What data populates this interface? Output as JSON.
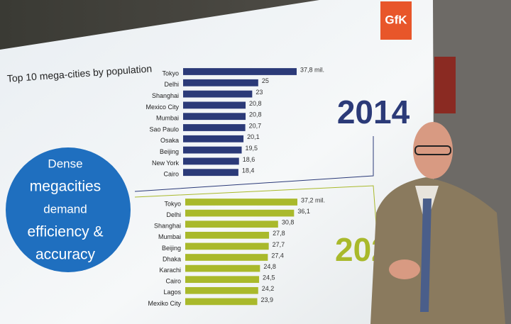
{
  "logo": "GfK",
  "year_labels": [
    "2014",
    "202"
  ],
  "bubble_lines": [
    "Dense",
    "megacities",
    "demand",
    "efficiency &",
    "accuracy"
  ],
  "chart_data": [
    {
      "type": "bar",
      "orientation": "horizontal",
      "title": "Top 10 mega-cities by population",
      "color": "#2b3a78",
      "categories": [
        "Tokyo",
        "Delhi",
        "Shanghai",
        "Mexico City",
        "Mumbai",
        "Sao Paulo",
        "Osaka",
        "Beijing",
        "New York",
        "Cairo"
      ],
      "values": [
        37.8,
        25,
        23,
        20.8,
        20.8,
        20.7,
        20.1,
        19.5,
        18.6,
        18.4
      ],
      "value_labels": [
        "37,8 mil.",
        "25",
        "23",
        "20,8",
        "20,8",
        "20,7",
        "20,1",
        "19,5",
        "18,6",
        "18,4"
      ]
    },
    {
      "type": "bar",
      "orientation": "horizontal",
      "color": "#a9b92b",
      "categories": [
        "Tokyo",
        "Delhi",
        "Shanghai",
        "Mumbai",
        "Beijing",
        "Dhaka",
        "Karachi",
        "Cairo",
        "Lagos",
        "Mexiko City"
      ],
      "values": [
        37.2,
        36.1,
        30.8,
        27.8,
        27.7,
        27.4,
        24.8,
        24.5,
        24.2,
        23.9
      ],
      "value_labels": [
        "37,2 mil.",
        "36,1",
        "30,8",
        "27,8",
        "27,7",
        "27,4",
        "24,8",
        "24,5",
        "24,2",
        "23,9"
      ]
    }
  ]
}
